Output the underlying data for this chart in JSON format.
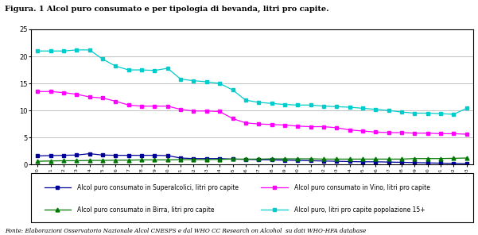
{
  "title": "Figura. 1 Alcol puro consumato e per tipologia di bevanda, litri pro capite.",
  "footnote": "Fonte: Elaborazioni Osservatorio Nazionale Alcol CNESPS e dal WHO CC Research on Alcohol  su dati WHO-HFA database",
  "years": [
    1970,
    1971,
    1972,
    1973,
    1974,
    1975,
    1976,
    1977,
    1978,
    1979,
    1980,
    1981,
    1982,
    1983,
    1984,
    1985,
    1986,
    1987,
    1988,
    1989,
    1990,
    1991,
    1992,
    1993,
    1994,
    1995,
    1996,
    1997,
    1998,
    1999,
    2000,
    2001,
    2002,
    2003
  ],
  "superalcolici": [
    1.6,
    1.65,
    1.7,
    1.75,
    2.0,
    1.75,
    1.7,
    1.7,
    1.7,
    1.7,
    1.65,
    1.2,
    1.1,
    1.1,
    1.1,
    1.0,
    0.95,
    0.9,
    0.85,
    0.8,
    0.75,
    0.7,
    0.65,
    0.6,
    0.55,
    0.5,
    0.5,
    0.45,
    0.4,
    0.35,
    0.3,
    0.25,
    0.2,
    0.15
  ],
  "vino": [
    13.5,
    13.5,
    13.3,
    13.0,
    12.5,
    12.3,
    11.7,
    11.0,
    10.8,
    10.8,
    10.8,
    10.2,
    9.9,
    9.9,
    9.8,
    8.5,
    7.7,
    7.5,
    7.4,
    7.3,
    7.1,
    7.0,
    7.0,
    6.8,
    6.4,
    6.2,
    6.0,
    5.9,
    5.9,
    5.8,
    5.8,
    5.7,
    5.7,
    5.6
  ],
  "birra": [
    0.6,
    0.65,
    0.7,
    0.7,
    0.75,
    0.75,
    0.8,
    0.8,
    0.85,
    0.85,
    0.85,
    0.9,
    0.9,
    0.9,
    0.95,
    1.0,
    1.0,
    1.0,
    1.05,
    1.05,
    1.05,
    1.05,
    1.0,
    1.0,
    1.0,
    1.0,
    1.0,
    1.0,
    1.0,
    1.1,
    1.1,
    1.1,
    1.15,
    1.2
  ],
  "totale15": [
    21.0,
    21.0,
    21.0,
    21.2,
    21.2,
    19.5,
    18.2,
    17.5,
    17.5,
    17.4,
    17.8,
    15.8,
    15.5,
    15.3,
    15.0,
    13.8,
    11.9,
    11.5,
    11.3,
    11.1,
    11.0,
    11.0,
    10.8,
    10.7,
    10.6,
    10.4,
    10.2,
    10.0,
    9.7,
    9.5,
    9.5,
    9.4,
    9.3,
    10.4
  ],
  "color_superalcolici": "#000099",
  "color_vino": "#FF00FF",
  "color_birra": "#007700",
  "color_totale15": "#00CCCC",
  "ylim": [
    0,
    25
  ],
  "yticks": [
    0,
    5,
    10,
    15,
    20,
    25
  ],
  "legend_labels": [
    "Alcol puro consumato in Superalcolici, litri pro capite",
    "Alcol puro consumato in Vino, litri pro capite",
    "Alcol puro consumato in Birra, litri pro capite",
    "Alcol puro, litri pro capite popolazione 15+"
  ]
}
